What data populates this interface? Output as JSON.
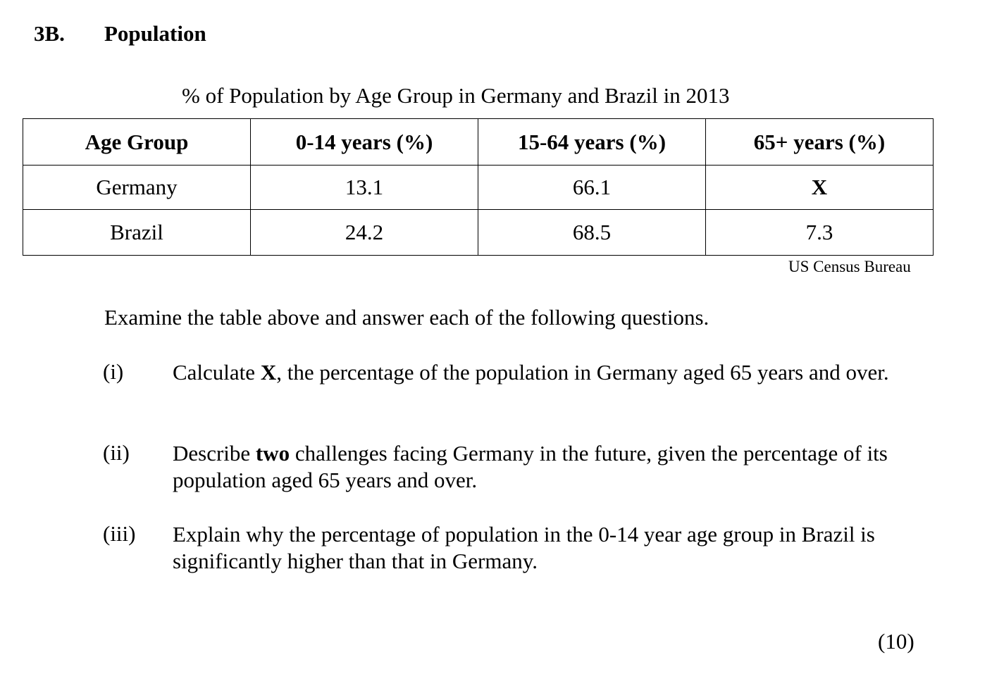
{
  "section": {
    "number": "3B.",
    "title": "Population"
  },
  "table": {
    "caption": "% of Population by Age Group in Germany and Brazil in 2013",
    "headers": [
      "Age Group",
      "0-14 years (%)",
      "15-64 years (%)",
      "65+ years (%)"
    ],
    "rows": [
      [
        "Germany",
        "13.1",
        "66.1",
        "X"
      ],
      [
        "Brazil",
        "24.2",
        "68.5",
        "7.3"
      ]
    ],
    "source": "US Census Bureau"
  },
  "instruction": "Examine the table above and answer each of the following questions.",
  "questions": [
    {
      "marker": "(i)",
      "text_before": "Calculate ",
      "bold": "X",
      "text_after": ", the percentage of the population in Germany aged 65 years and over."
    },
    {
      "marker": "(ii)",
      "text_before": "Describe ",
      "bold": "two",
      "text_after": " challenges facing Germany in the future, given the percentage of its population aged 65 years and over."
    },
    {
      "marker": "(iii)",
      "text": "Explain why the percentage of population in the 0-14 year age group in Brazil is significantly higher than that in Germany."
    }
  ],
  "marks": "(10)"
}
